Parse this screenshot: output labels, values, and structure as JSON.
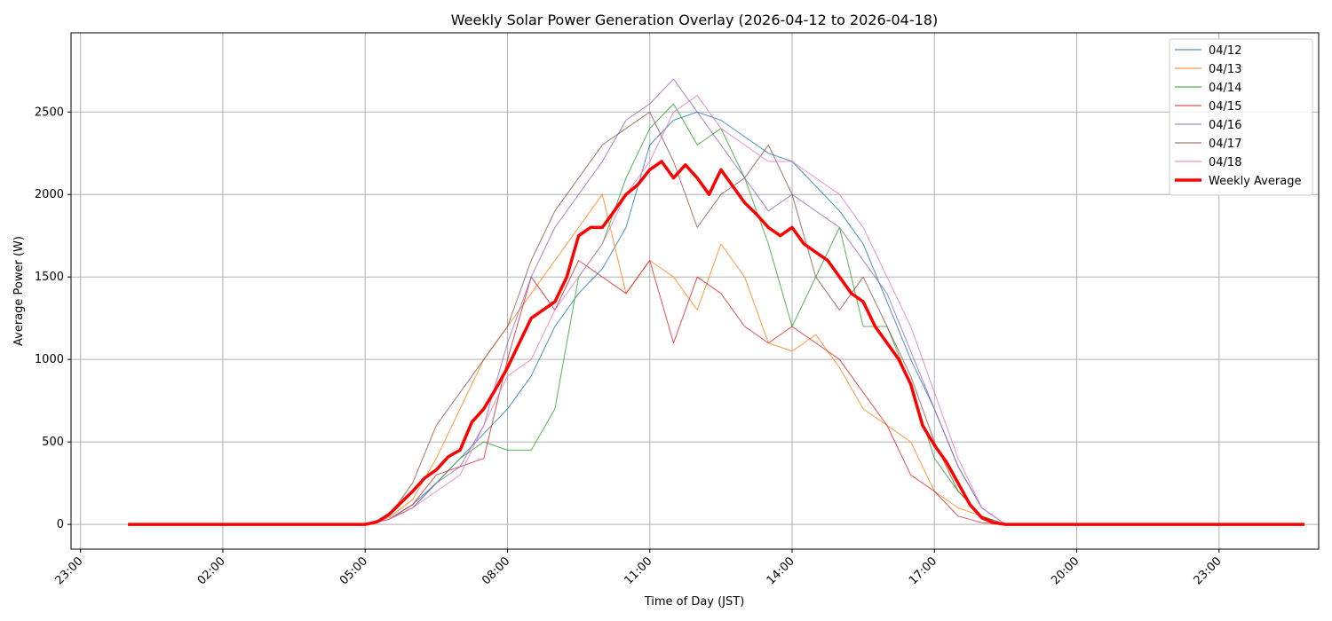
{
  "chart_data": {
    "type": "line",
    "title": "Weekly Solar Power Generation Overlay (2026-04-12 to 2026-04-18)",
    "xlabel": "Time of Day (JST)",
    "ylabel": "Average Power (W)",
    "x_unit": "hours since midnight",
    "xlim": [
      -1.2,
      25.1
    ],
    "ylim": [
      -150,
      2980
    ],
    "grid": true,
    "legend_position": "top-right",
    "x_ticks": [
      {
        "value": -1,
        "label": "23:00"
      },
      {
        "value": 2,
        "label": "02:00"
      },
      {
        "value": 5,
        "label": "05:00"
      },
      {
        "value": 8,
        "label": "08:00"
      },
      {
        "value": 11,
        "label": "11:00"
      },
      {
        "value": 14,
        "label": "14:00"
      },
      {
        "value": 17,
        "label": "17:00"
      },
      {
        "value": 20,
        "label": "20:00"
      },
      {
        "value": 23,
        "label": "23:00"
      }
    ],
    "y_ticks": [
      {
        "value": 0,
        "label": "0"
      },
      {
        "value": 500,
        "label": "500"
      },
      {
        "value": 1000,
        "label": "1000"
      },
      {
        "value": 1500,
        "label": "1500"
      },
      {
        "value": 2000,
        "label": "2000"
      },
      {
        "value": 2500,
        "label": "2500"
      }
    ],
    "series": [
      {
        "name": "04/12",
        "color": "#1f77b4",
        "width": 1,
        "x": [
          0,
          5,
          5.5,
          6,
          6.5,
          7,
          7.5,
          8,
          8.5,
          9,
          9.5,
          10,
          10.5,
          11,
          11.5,
          12,
          12.5,
          13,
          13.5,
          14,
          14.5,
          15,
          15.5,
          16,
          16.5,
          17,
          17.5,
          18,
          18.5,
          24.8
        ],
        "y": [
          0,
          0,
          30,
          120,
          250,
          400,
          550,
          700,
          900,
          1200,
          1400,
          1550,
          1800,
          2300,
          2450,
          2500,
          2450,
          2350,
          2250,
          2200,
          2050,
          1900,
          1700,
          1350,
          1000,
          700,
          350,
          100,
          0,
          0
        ]
      },
      {
        "name": "04/13",
        "color": "#ff7f0e",
        "width": 1,
        "x": [
          0,
          5,
          5.5,
          6,
          6.5,
          7,
          7.5,
          8,
          8.5,
          9,
          9.5,
          10,
          10.5,
          11,
          11.5,
          12,
          12.5,
          13,
          13.5,
          14,
          14.5,
          15,
          15.5,
          16,
          16.5,
          17,
          17.5,
          18,
          18.5,
          24.8
        ],
        "y": [
          0,
          0,
          40,
          150,
          400,
          700,
          1000,
          1200,
          1400,
          1600,
          1800,
          2000,
          1400,
          1600,
          1500,
          1300,
          1700,
          1500,
          1100,
          1050,
          1150,
          950,
          700,
          600,
          500,
          200,
          100,
          50,
          0,
          0
        ]
      },
      {
        "name": "04/14",
        "color": "#2ca02c",
        "width": 1,
        "x": [
          0,
          5,
          5.5,
          6,
          6.5,
          7,
          7.5,
          8,
          8.5,
          9,
          9.5,
          10,
          10.5,
          11,
          11.5,
          12,
          12.5,
          13,
          13.5,
          14,
          14.5,
          15,
          15.5,
          16,
          16.5,
          17,
          17.5,
          18,
          18.5,
          24.8
        ],
        "y": [
          0,
          0,
          30,
          100,
          250,
          400,
          500,
          450,
          450,
          700,
          1500,
          1700,
          2100,
          2400,
          2550,
          2300,
          2400,
          2100,
          1700,
          1200,
          1500,
          1800,
          1200,
          1200,
          850,
          400,
          200,
          50,
          0,
          0
        ]
      },
      {
        "name": "04/15",
        "color": "#d62728",
        "width": 1,
        "x": [
          0,
          5,
          5.5,
          6,
          6.5,
          7,
          7.5,
          8,
          8.5,
          9,
          9.5,
          10,
          10.5,
          11,
          11.5,
          12,
          12.5,
          13,
          13.5,
          14,
          14.5,
          15,
          15.5,
          16,
          16.5,
          17,
          17.5,
          18,
          18.5,
          24.8
        ],
        "y": [
          0,
          0,
          30,
          120,
          300,
          350,
          400,
          1000,
          1500,
          1300,
          1600,
          1500,
          1400,
          1600,
          1100,
          1500,
          1400,
          1200,
          1100,
          1200,
          1100,
          1000,
          800,
          600,
          300,
          200,
          50,
          10,
          0,
          0
        ]
      },
      {
        "name": "04/16",
        "color": "#9467bd",
        "width": 1,
        "x": [
          0,
          5,
          5.5,
          6,
          6.5,
          7,
          7.5,
          8,
          8.5,
          9,
          9.5,
          10,
          10.5,
          11,
          11.5,
          12,
          12.5,
          13,
          13.5,
          14,
          14.5,
          15,
          15.5,
          16,
          16.5,
          17,
          17.5,
          18,
          18.5,
          24.8
        ],
        "y": [
          0,
          0,
          30,
          100,
          250,
          350,
          600,
          1100,
          1500,
          1800,
          2000,
          2200,
          2450,
          2550,
          2700,
          2500,
          2300,
          2100,
          1900,
          2000,
          1900,
          1800,
          1600,
          1400,
          1050,
          700,
          350,
          100,
          0,
          0
        ]
      },
      {
        "name": "04/17",
        "color": "#8c564b",
        "width": 1,
        "x": [
          0,
          5,
          5.5,
          6,
          6.5,
          7,
          7.5,
          8,
          8.5,
          9,
          9.5,
          10,
          10.5,
          11,
          11.5,
          12,
          12.5,
          13,
          13.5,
          14,
          14.5,
          15,
          15.5,
          16,
          16.5,
          17,
          17.5,
          18,
          18.5,
          24.8
        ],
        "y": [
          0,
          0,
          50,
          250,
          600,
          800,
          1000,
          1200,
          1600,
          1900,
          2100,
          2300,
          2400,
          2500,
          2200,
          1800,
          2000,
          2100,
          2300,
          2000,
          1500,
          1300,
          1500,
          1200,
          900,
          500,
          200,
          50,
          0,
          0
        ]
      },
      {
        "name": "04/18",
        "color": "#e377c2",
        "width": 1,
        "x": [
          0,
          5,
          5.5,
          6,
          6.5,
          7,
          7.5,
          8,
          8.5,
          9,
          9.5,
          10,
          10.5,
          11,
          11.5,
          12,
          12.5,
          13,
          13.5,
          14,
          14.5,
          15,
          15.5,
          16,
          16.5,
          17,
          17.5,
          18,
          18.5,
          24.8
        ],
        "y": [
          0,
          0,
          30,
          100,
          200,
          300,
          600,
          900,
          1000,
          1300,
          1500,
          1700,
          2000,
          2200,
          2500,
          2600,
          2400,
          2300,
          2200,
          2200,
          2100,
          2000,
          1800,
          1500,
          1200,
          800,
          400,
          100,
          0,
          0
        ]
      },
      {
        "name": "Weekly Average",
        "color": "#ff0000",
        "width": 3.5,
        "x": [
          0,
          4.5,
          5,
          5.25,
          5.5,
          5.75,
          6,
          6.25,
          6.5,
          6.75,
          7,
          7.25,
          7.5,
          7.75,
          8,
          8.25,
          8.5,
          8.75,
          9,
          9.25,
          9.5,
          9.75,
          10,
          10.25,
          10.5,
          10.75,
          11,
          11.25,
          11.5,
          11.75,
          12,
          12.25,
          12.5,
          12.75,
          13,
          13.25,
          13.5,
          13.75,
          14,
          14.25,
          14.5,
          14.75,
          15,
          15.25,
          15.5,
          15.75,
          16,
          16.25,
          16.5,
          16.75,
          17,
          17.25,
          17.5,
          17.75,
          18,
          18.25,
          18.5,
          20,
          24.8
        ],
        "y": [
          0,
          0,
          0,
          15,
          60,
          130,
          200,
          280,
          330,
          410,
          450,
          620,
          700,
          820,
          950,
          1100,
          1250,
          1300,
          1350,
          1500,
          1750,
          1800,
          1800,
          1900,
          2000,
          2060,
          2150,
          2200,
          2100,
          2180,
          2100,
          2000,
          2150,
          2050,
          1950,
          1880,
          1800,
          1750,
          1800,
          1700,
          1650,
          1600,
          1500,
          1400,
          1350,
          1200,
          1100,
          1000,
          850,
          600,
          480,
          380,
          250,
          120,
          40,
          10,
          0,
          0,
          0
        ]
      }
    ]
  }
}
